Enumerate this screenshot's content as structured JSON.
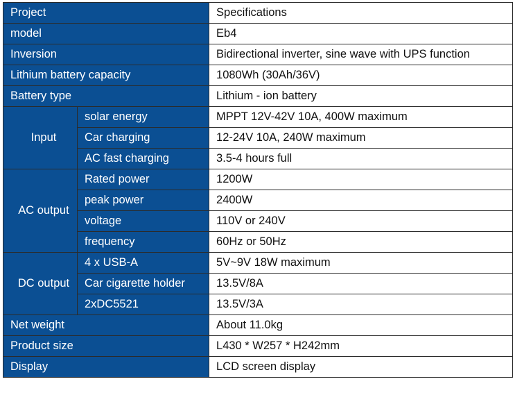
{
  "header": {
    "label": "Project",
    "value": "Specifications"
  },
  "rows_top": [
    {
      "label": "model",
      "value": "Eb4"
    },
    {
      "label": "Inversion",
      "value": "Bidirectional inverter, sine wave with UPS function"
    },
    {
      "label": "Lithium battery capacity",
      "value": "1080Wh (30Ah/36V)"
    },
    {
      "label": "Battery type",
      "value": "Lithium - ion battery"
    }
  ],
  "groups": [
    {
      "label": "Input",
      "items": [
        {
          "label": "solar energy",
          "value": "MPPT 12V-42V 10A, 400W maximum"
        },
        {
          "label": "Car charging",
          "value": "12-24V 10A, 240W maximum"
        },
        {
          "label": "AC fast charging",
          "value": "3.5-4 hours full"
        }
      ]
    },
    {
      "label": "AC output",
      "items": [
        {
          "label": "Rated power",
          "value": "1200W"
        },
        {
          "label": "peak power",
          "value": "2400W"
        },
        {
          "label": "voltage",
          "value": "110V or 240V"
        },
        {
          "label": "frequency",
          "value": "60Hz or 50Hz"
        }
      ]
    },
    {
      "label": "DC output",
      "items": [
        {
          "label": "4 x USB-A",
          "value": "5V~9V 18W maximum"
        },
        {
          "label": "Car cigarette holder",
          "value": "13.5V/8A"
        },
        {
          "label": "2xDC5521",
          "value": "13.5V/3A"
        }
      ]
    }
  ],
  "rows_bottom": [
    {
      "label": "Net weight",
      "value": "About 11.0kg"
    },
    {
      "label": "Product size",
      "value": "L430 * W257 * H242mm"
    },
    {
      "label": "Display",
      "value": "LCD screen display"
    }
  ],
  "colors": {
    "label_bg": "#0b4f93",
    "label_text": "#ffffff",
    "border": "#2b2b2b"
  }
}
